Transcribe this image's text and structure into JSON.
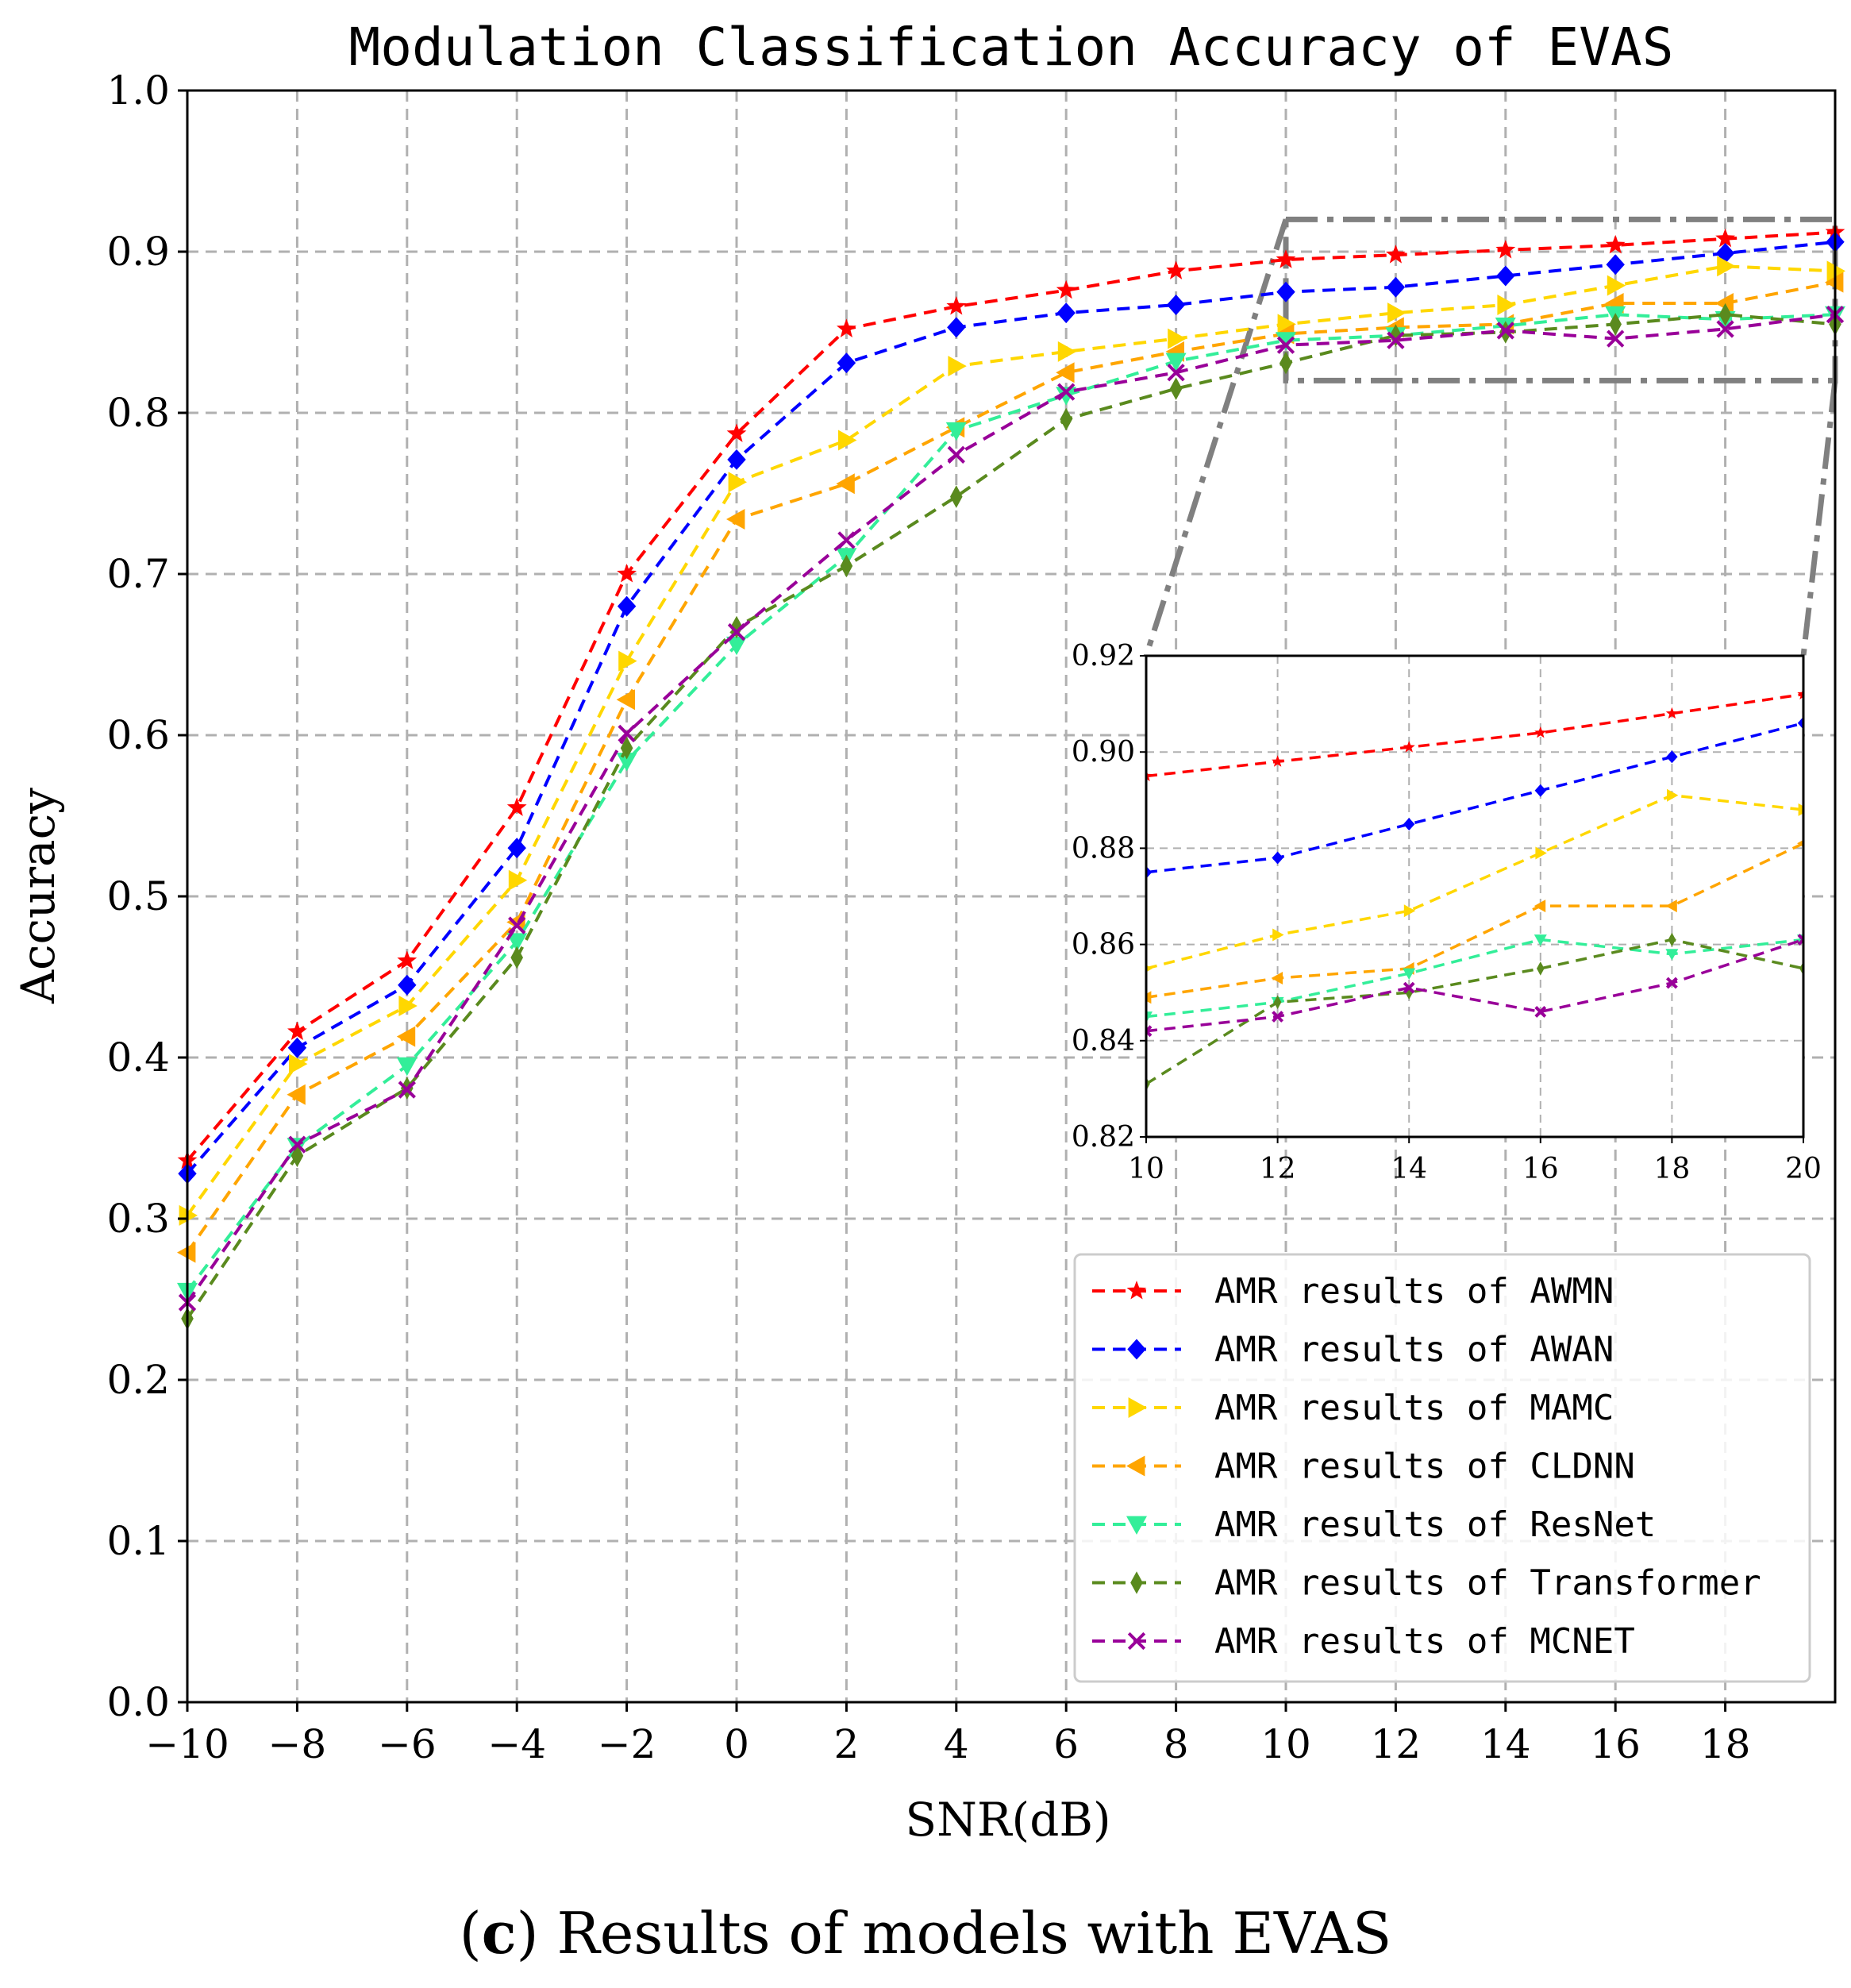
{
  "chart_data": {
    "type": "line",
    "title": "Modulation Classification Accuracy of EVAS",
    "xlabel": "SNR(dB)",
    "ylabel": "Accuracy",
    "xlim": [
      -10,
      20
    ],
    "ylim": [
      0.0,
      1.0
    ],
    "x_ticks": [
      -10,
      -8,
      -6,
      -4,
      -2,
      0,
      2,
      4,
      6,
      8,
      10,
      12,
      14,
      16,
      18
    ],
    "x_tick_labels": [
      "−10",
      "−8",
      "−6",
      "−4",
      "−2",
      "0",
      "2",
      "4",
      "6",
      "8",
      "10",
      "12",
      "14",
      "16",
      "18"
    ],
    "y_ticks": [
      0.0,
      0.1,
      0.2,
      0.3,
      0.4,
      0.5,
      0.6,
      0.7,
      0.8,
      0.9,
      1.0
    ],
    "y_tick_labels": [
      "0.0",
      "0.1",
      "0.2",
      "0.3",
      "0.4",
      "0.5",
      "0.6",
      "0.7",
      "0.8",
      "0.9",
      "1.0"
    ],
    "grid": true,
    "legend_position": "bottom-right",
    "x": [
      -10,
      -8,
      -6,
      -4,
      -2,
      0,
      2,
      4,
      6,
      8,
      10,
      12,
      14,
      16,
      18,
      20
    ],
    "series": [
      {
        "name": "AMR results of AWMN",
        "color": "#ff0000",
        "marker": "star",
        "values": [
          0.336,
          0.416,
          0.46,
          0.555,
          0.7,
          0.787,
          0.852,
          0.866,
          0.876,
          0.888,
          0.895,
          0.898,
          0.901,
          0.904,
          0.908,
          0.912
        ]
      },
      {
        "name": "AMR results of AWAN",
        "color": "#0000ff",
        "marker": "diamond",
        "values": [
          0.328,
          0.406,
          0.445,
          0.53,
          0.68,
          0.771,
          0.831,
          0.853,
          0.862,
          0.867,
          0.875,
          0.878,
          0.885,
          0.892,
          0.899,
          0.906
        ]
      },
      {
        "name": "AMR results of MAMC",
        "color": "#ffd700",
        "marker": "triangle-right",
        "values": [
          0.302,
          0.396,
          0.432,
          0.51,
          0.646,
          0.757,
          0.783,
          0.829,
          0.838,
          0.846,
          0.855,
          0.862,
          0.867,
          0.879,
          0.891,
          0.888
        ]
      },
      {
        "name": "AMR results of CLDNN",
        "color": "#ffa500",
        "marker": "triangle-left",
        "values": [
          0.279,
          0.377,
          0.413,
          0.484,
          0.622,
          0.734,
          0.756,
          0.791,
          0.825,
          0.838,
          0.849,
          0.853,
          0.855,
          0.868,
          0.868,
          0.881
        ]
      },
      {
        "name": "AMR results of ResNet",
        "color": "#33ee99",
        "marker": "triangle-down",
        "values": [
          0.255,
          0.345,
          0.395,
          0.472,
          0.584,
          0.656,
          0.711,
          0.789,
          0.811,
          0.832,
          0.845,
          0.848,
          0.854,
          0.861,
          0.858,
          0.861
        ]
      },
      {
        "name": "AMR results of Transformer",
        "color": "#5a8a1e",
        "marker": "diamond-thin",
        "values": [
          0.238,
          0.339,
          0.381,
          0.462,
          0.592,
          0.667,
          0.705,
          0.748,
          0.796,
          0.815,
          0.831,
          0.848,
          0.85,
          0.855,
          0.861,
          0.855
        ]
      },
      {
        "name": "AMR results of MCNET",
        "color": "#990099",
        "marker": "x",
        "values": [
          0.248,
          0.346,
          0.38,
          0.482,
          0.601,
          0.664,
          0.721,
          0.774,
          0.813,
          0.825,
          0.842,
          0.845,
          0.851,
          0.846,
          0.852,
          0.861
        ]
      }
    ],
    "inset": {
      "xlim": [
        10,
        20
      ],
      "ylim": [
        0.82,
        0.92
      ],
      "x_ticks": [
        10,
        12,
        14,
        16,
        18,
        20
      ],
      "x_tick_labels": [
        "10",
        "12",
        "14",
        "16",
        "18",
        "20"
      ],
      "y_ticks": [
        0.82,
        0.84,
        0.86,
        0.88,
        0.9,
        0.92
      ],
      "y_tick_labels": [
        "0.82",
        "0.84",
        "0.86",
        "0.88",
        "0.90",
        "0.92"
      ],
      "zoom_region": {
        "x": [
          10,
          20
        ],
        "y": [
          0.82,
          0.92
        ]
      }
    }
  },
  "caption": {
    "open": "(",
    "letter": "c",
    "close": ")",
    "text": " Results of models with EVAS"
  }
}
